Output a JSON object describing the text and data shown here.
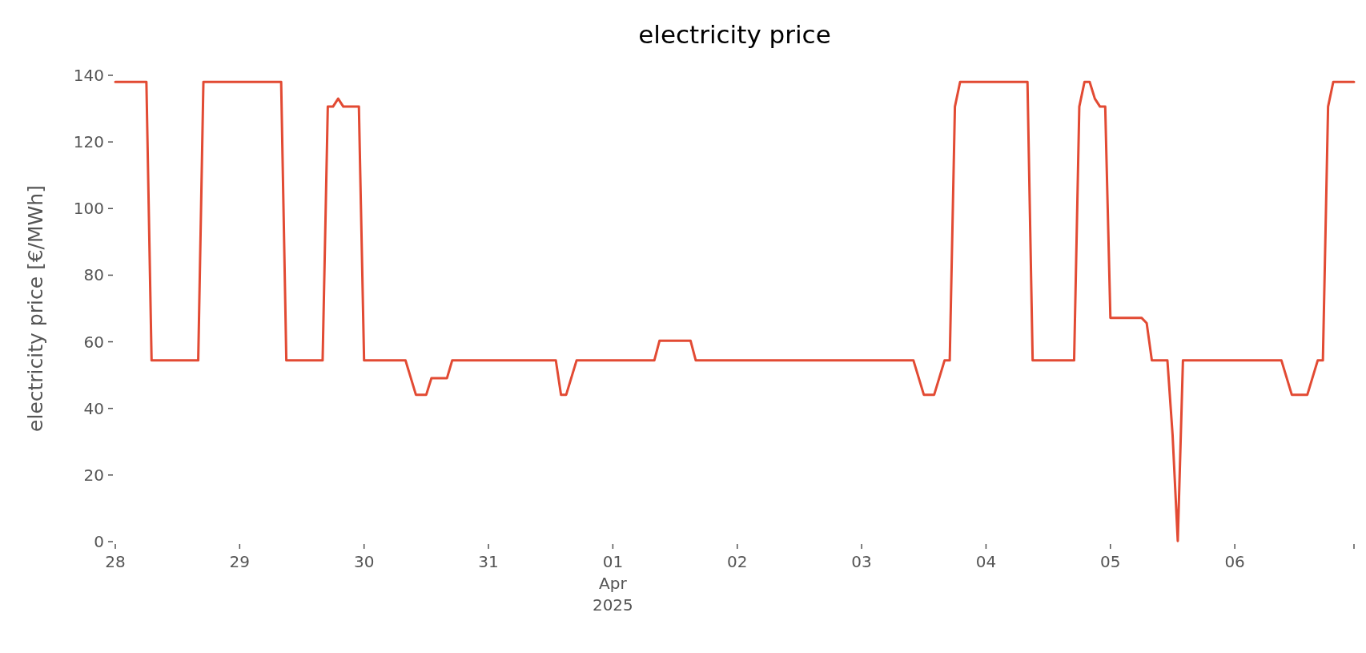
{
  "chart_data": {
    "type": "line",
    "title": "electricity price",
    "ylabel": "electricity price [€/MWh]",
    "xlim": [
      "2025-03-28T00:00",
      "2025-04-06T23:00"
    ],
    "ylim": [
      0,
      140
    ],
    "yticks": [
      0,
      20,
      40,
      60,
      80,
      100,
      120,
      140
    ],
    "xticks": [
      {
        "value": "2025-03-28",
        "label": "28"
      },
      {
        "value": "2025-03-29",
        "label": "29"
      },
      {
        "value": "2025-03-30",
        "label": "30"
      },
      {
        "value": "2025-03-31",
        "label": "31"
      },
      {
        "value": "2025-04-01",
        "label": "01\nApr\n2025"
      },
      {
        "value": "2025-04-02",
        "label": "02"
      },
      {
        "value": "2025-04-03",
        "label": "03"
      },
      {
        "value": "2025-04-04",
        "label": "04"
      },
      {
        "value": "2025-04-05",
        "label": "05"
      },
      {
        "value": "2025-04-06",
        "label": "06"
      },
      {
        "value": "2025-04-06T23:00",
        "label": null
      }
    ],
    "grid": false,
    "marker": "none",
    "line_style": "solid",
    "series": [
      {
        "color": "#e24a33",
        "x": [
          "2025-03-28T00:00",
          "2025-03-28T06:00",
          "2025-03-28T07:00",
          "2025-03-28T16:00",
          "2025-03-28T17:00",
          "2025-03-29T08:00",
          "2025-03-29T09:00",
          "2025-03-29T16:00",
          "2025-03-29T17:00",
          "2025-03-29T18:00",
          "2025-03-29T19:00",
          "2025-03-29T20:00",
          "2025-03-29T23:00",
          "2025-03-30T00:00",
          "2025-03-30T08:00",
          "2025-03-30T10:00",
          "2025-03-30T12:00",
          "2025-03-30T13:00",
          "2025-03-30T16:00",
          "2025-03-30T17:00",
          "2025-03-31T13:00",
          "2025-03-31T14:00",
          "2025-03-31T15:00",
          "2025-03-31T17:00",
          "2025-04-01T08:00",
          "2025-04-01T09:00",
          "2025-04-01T15:00",
          "2025-04-01T16:00",
          "2025-04-03T10:00",
          "2025-04-03T12:00",
          "2025-04-03T14:00",
          "2025-04-03T16:00",
          "2025-04-03T17:00",
          "2025-04-03T18:00",
          "2025-04-03T19:00",
          "2025-04-04T08:00",
          "2025-04-04T09:00",
          "2025-04-04T17:00",
          "2025-04-04T18:00",
          "2025-04-04T19:00",
          "2025-04-04T20:00",
          "2025-04-04T21:00",
          "2025-04-04T22:00",
          "2025-04-04T23:00",
          "2025-04-05T00:00",
          "2025-04-05T06:00",
          "2025-04-05T07:00",
          "2025-04-05T08:00",
          "2025-04-05T11:00",
          "2025-04-05T12:00",
          "2025-04-05T13:00",
          "2025-04-05T14:00",
          "2025-04-06T09:00",
          "2025-04-06T11:00",
          "2025-04-06T14:00",
          "2025-04-06T16:00",
          "2025-04-06T17:00",
          "2025-04-06T18:00",
          "2025-04-06T19:00",
          "2025-04-06T23:00"
        ],
        "values": [
          138,
          138,
          54.4,
          54.4,
          138,
          138,
          54.4,
          54.4,
          130.6,
          130.6,
          133,
          130.6,
          130.6,
          54.4,
          54.4,
          44.1,
          44.1,
          49.1,
          49.1,
          54.4,
          54.4,
          44.1,
          44.1,
          54.4,
          54.4,
          60.3,
          60.3,
          54.4,
          54.4,
          44.1,
          44.1,
          54.4,
          54.4,
          130.6,
          138,
          138,
          54.4,
          54.4,
          130.6,
          138,
          138,
          133,
          130.6,
          130.6,
          67.2,
          67.2,
          65.6,
          54.4,
          54.4,
          32,
          0.2,
          54.4,
          54.4,
          44.1,
          44.1,
          54.4,
          54.4,
          130.6,
          138,
          138
        ]
      }
    ]
  }
}
